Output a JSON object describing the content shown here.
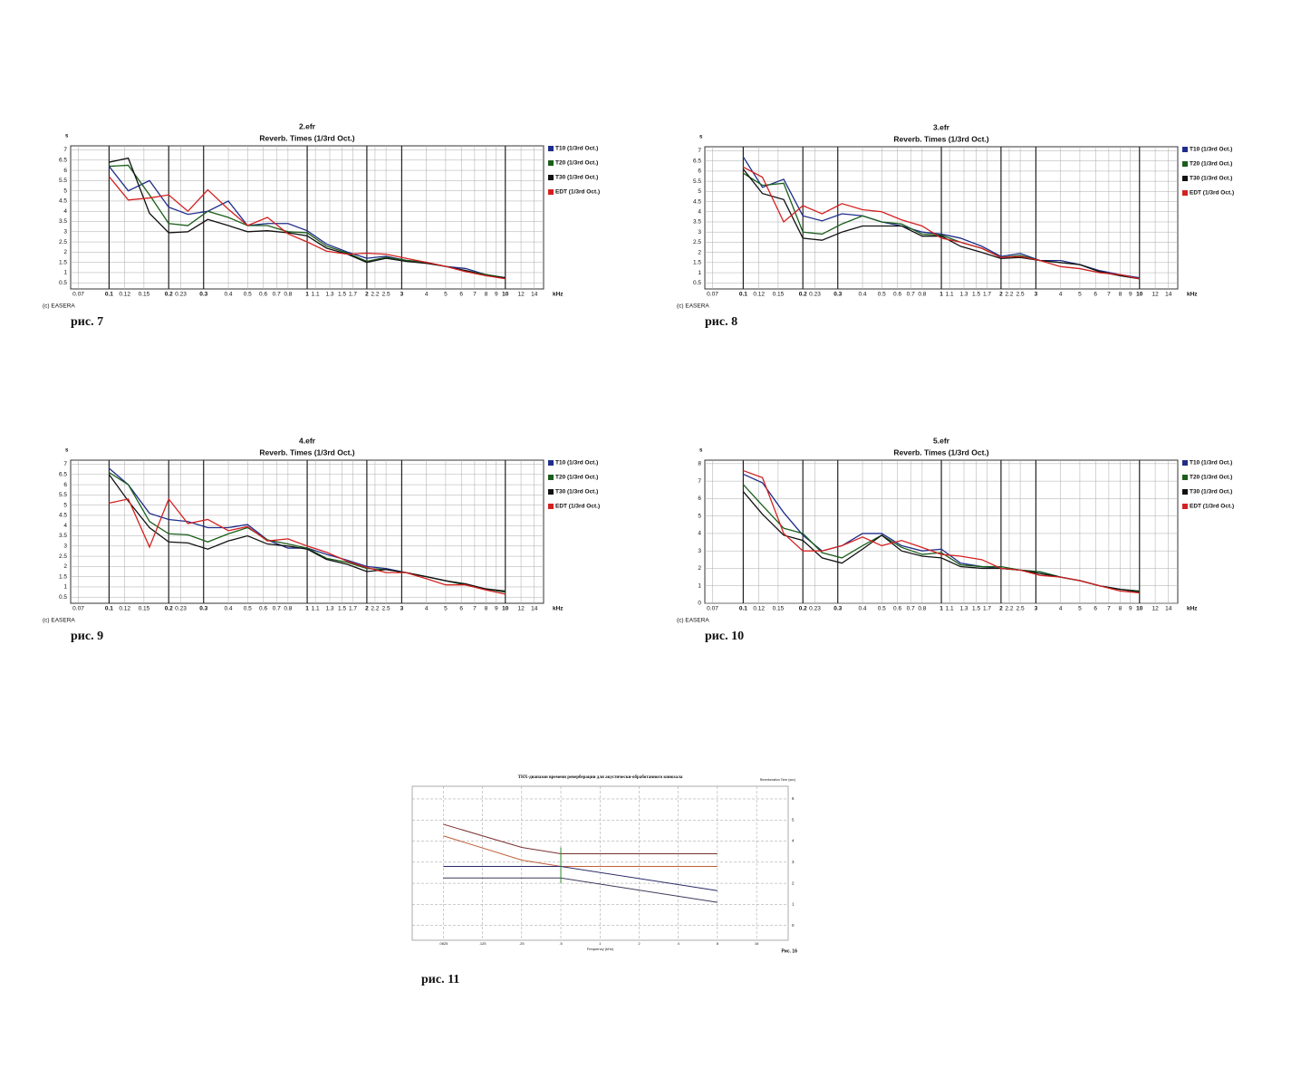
{
  "chart_data": [
    {
      "type": "line",
      "title": "2.efr",
      "subtitle": "Reverb. Times (1/3rd Oct.)",
      "y_unit": "s",
      "x_unit": "kHz",
      "copyright": "(c) EASERA",
      "caption": "рис. 7",
      "xscale": "log",
      "grid": true,
      "legend": "right",
      "xlim": [
        0.064,
        15.6
      ],
      "ylim": [
        0.2,
        7.2
      ],
      "xticks": [
        0.07,
        0.1,
        0.12,
        0.15,
        0.2,
        0.23,
        0.3,
        0.4,
        0.5,
        0.6,
        0.7,
        0.8,
        1,
        1.1,
        1.3,
        1.5,
        1.7,
        2,
        2.2,
        2.5,
        3,
        4,
        5,
        6,
        7,
        8,
        9,
        10,
        12,
        14
      ],
      "yticks": [
        0.5,
        1,
        1.5,
        2,
        2.5,
        3,
        3.5,
        4,
        4.5,
        5,
        5.5,
        6,
        6.5,
        7
      ],
      "x": [
        0.1,
        0.125,
        0.16,
        0.2,
        0.25,
        0.315,
        0.4,
        0.5,
        0.63,
        0.8,
        1,
        1.25,
        1.6,
        2,
        2.5,
        3.15,
        4,
        5,
        6.3,
        8,
        10
      ],
      "series": [
        {
          "name": "T10 (1/3rd Oct.)",
          "color": "#1f2d8a",
          "values": [
            6.2,
            5.0,
            5.5,
            4.2,
            3.85,
            4.0,
            4.5,
            3.3,
            3.4,
            3.4,
            3.05,
            2.4,
            2.0,
            1.7,
            1.8,
            1.6,
            1.5,
            1.3,
            1.2,
            0.9,
            0.75
          ]
        },
        {
          "name": "T20 (1/3rd Oct.)",
          "color": "#1a5e1a",
          "values": [
            6.2,
            6.25,
            4.8,
            3.4,
            3.3,
            4.0,
            3.7,
            3.3,
            3.3,
            3.0,
            2.95,
            2.3,
            1.95,
            1.55,
            1.75,
            1.6,
            1.5,
            1.3,
            1.1,
            0.9,
            0.75
          ]
        },
        {
          "name": "T30 (1/3rd Oct.)",
          "color": "#111111",
          "values": [
            6.4,
            6.6,
            3.9,
            2.95,
            3.0,
            3.6,
            3.3,
            3.0,
            3.05,
            2.95,
            2.8,
            2.2,
            1.9,
            1.5,
            1.7,
            1.55,
            1.45,
            1.3,
            1.1,
            0.85,
            0.75
          ]
        },
        {
          "name": "EDT (1/3rd Oct.)",
          "color": "#d42020",
          "values": [
            5.7,
            4.55,
            4.65,
            4.8,
            4.0,
            5.05,
            4.1,
            3.3,
            3.7,
            2.9,
            2.5,
            2.05,
            1.9,
            1.95,
            1.9,
            1.7,
            1.5,
            1.3,
            1.05,
            0.85,
            0.7
          ]
        }
      ]
    },
    {
      "type": "line",
      "title": "3.efr",
      "subtitle": "Reverb. Times (1/3rd Oct.)",
      "y_unit": "s",
      "x_unit": "kHz",
      "copyright": "(c) EASERA",
      "caption": "рис. 8",
      "xscale": "log",
      "grid": true,
      "legend": "right",
      "xlim": [
        0.064,
        15.6
      ],
      "ylim": [
        0.2,
        7.2
      ],
      "xticks": [
        0.07,
        0.1,
        0.12,
        0.15,
        0.2,
        0.23,
        0.3,
        0.4,
        0.5,
        0.6,
        0.7,
        0.8,
        1,
        1.1,
        1.3,
        1.5,
        1.7,
        2,
        2.2,
        2.5,
        3,
        4,
        5,
        6,
        7,
        8,
        9,
        10,
        12,
        14
      ],
      "yticks": [
        0.5,
        1,
        1.5,
        2,
        2.5,
        3,
        3.5,
        4,
        4.5,
        5,
        5.5,
        6,
        6.5,
        7
      ],
      "x": [
        0.1,
        0.125,
        0.16,
        0.2,
        0.25,
        0.315,
        0.4,
        0.5,
        0.63,
        0.8,
        1,
        1.25,
        1.6,
        2,
        2.5,
        3.15,
        4,
        5,
        6.3,
        8,
        10
      ],
      "series": [
        {
          "name": "T10 (1/3rd Oct.)",
          "color": "#1f2d8a",
          "values": [
            6.7,
            5.2,
            5.6,
            3.8,
            3.55,
            3.9,
            3.8,
            3.5,
            3.3,
            3.0,
            2.9,
            2.7,
            2.3,
            1.8,
            1.95,
            1.6,
            1.6,
            1.4,
            1.1,
            0.9,
            0.75
          ]
        },
        {
          "name": "T20 (1/3rd Oct.)",
          "color": "#1a5e1a",
          "values": [
            5.9,
            5.3,
            5.4,
            3.0,
            2.9,
            3.4,
            3.8,
            3.5,
            3.4,
            2.9,
            2.85,
            2.5,
            2.2,
            1.75,
            1.85,
            1.6,
            1.5,
            1.4,
            1.05,
            0.85,
            0.7
          ]
        },
        {
          "name": "T30 (1/3rd Oct.)",
          "color": "#111111",
          "values": [
            6.1,
            4.9,
            4.6,
            2.7,
            2.6,
            3.0,
            3.3,
            3.3,
            3.3,
            2.8,
            2.8,
            2.3,
            2.0,
            1.7,
            1.75,
            1.6,
            1.5,
            1.4,
            1.05,
            0.85,
            0.7
          ]
        },
        {
          "name": "EDT (1/3rd Oct.)",
          "color": "#d42020",
          "values": [
            6.2,
            5.7,
            3.5,
            4.3,
            3.9,
            4.4,
            4.1,
            4.0,
            3.6,
            3.3,
            2.7,
            2.5,
            2.2,
            1.75,
            1.8,
            1.6,
            1.3,
            1.2,
            1.0,
            0.9,
            0.7
          ]
        }
      ]
    },
    {
      "type": "line",
      "title": "4.efr",
      "subtitle": "Reverb. Times (1/3rd Oct.)",
      "y_unit": "s",
      "x_unit": "kHz",
      "copyright": "(c) EASERA",
      "caption": "рис. 9",
      "xscale": "log",
      "grid": true,
      "legend": "right",
      "xlim": [
        0.064,
        15.6
      ],
      "ylim": [
        0.2,
        7.2
      ],
      "xticks": [
        0.07,
        0.1,
        0.12,
        0.15,
        0.2,
        0.23,
        0.3,
        0.4,
        0.5,
        0.6,
        0.7,
        0.8,
        1,
        1.1,
        1.3,
        1.5,
        1.7,
        2,
        2.2,
        2.5,
        3,
        4,
        5,
        6,
        7,
        8,
        9,
        10,
        12,
        14
      ],
      "yticks": [
        0.5,
        1,
        1.5,
        2,
        2.5,
        3,
        3.5,
        4,
        4.5,
        5,
        5.5,
        6,
        6.5,
        7
      ],
      "x": [
        0.1,
        0.125,
        0.16,
        0.2,
        0.25,
        0.315,
        0.4,
        0.5,
        0.63,
        0.8,
        1,
        1.25,
        1.6,
        2,
        2.5,
        3.15,
        4,
        5,
        6.3,
        8,
        10
      ],
      "series": [
        {
          "name": "T10 (1/3rd Oct.)",
          "color": "#1f2d8a",
          "values": [
            6.8,
            6.0,
            4.6,
            4.3,
            4.2,
            3.9,
            3.9,
            4.05,
            3.3,
            2.9,
            2.9,
            2.6,
            2.3,
            2.0,
            1.9,
            1.7,
            1.5,
            1.3,
            1.1,
            0.9,
            0.75
          ]
        },
        {
          "name": "T20 (1/3rd Oct.)",
          "color": "#1a5e1a",
          "values": [
            6.6,
            6.0,
            4.2,
            3.6,
            3.55,
            3.2,
            3.6,
            3.9,
            3.3,
            3.1,
            2.9,
            2.4,
            2.2,
            1.9,
            1.85,
            1.7,
            1.5,
            1.3,
            1.1,
            0.9,
            0.75
          ]
        },
        {
          "name": "T30 (1/3rd Oct.)",
          "color": "#111111",
          "values": [
            6.5,
            5.2,
            3.9,
            3.2,
            3.15,
            2.85,
            3.25,
            3.5,
            3.1,
            3.0,
            2.85,
            2.35,
            2.1,
            1.75,
            1.85,
            1.7,
            1.5,
            1.3,
            1.15,
            0.9,
            0.8
          ]
        },
        {
          "name": "EDT (1/3rd Oct.)",
          "color": "#d42020",
          "values": [
            5.1,
            5.3,
            2.95,
            5.3,
            4.1,
            4.3,
            3.75,
            3.95,
            3.25,
            3.35,
            3.0,
            2.7,
            2.25,
            1.95,
            1.7,
            1.7,
            1.4,
            1.1,
            1.1,
            0.85,
            0.65
          ]
        }
      ]
    },
    {
      "type": "line",
      "title": "5.efr",
      "subtitle": "Reverb. Times (1/3rd Oct.)",
      "y_unit": "s",
      "x_unit": "kHz",
      "copyright": "(c) EASERA",
      "caption": "рис. 10",
      "xscale": "log",
      "grid": true,
      "legend": "right",
      "xlim": [
        0.064,
        15.6
      ],
      "ylim": [
        0,
        8.2
      ],
      "xticks": [
        0.07,
        0.1,
        0.12,
        0.15,
        0.2,
        0.23,
        0.3,
        0.4,
        0.5,
        0.6,
        0.7,
        0.8,
        1,
        1.1,
        1.3,
        1.5,
        1.7,
        2,
        2.2,
        2.5,
        3,
        4,
        5,
        6,
        7,
        8,
        9,
        10,
        12,
        14
      ],
      "yticks": [
        0,
        1,
        2,
        3,
        4,
        5,
        6,
        7,
        8
      ],
      "x": [
        0.1,
        0.125,
        0.16,
        0.2,
        0.25,
        0.315,
        0.4,
        0.5,
        0.63,
        0.8,
        1,
        1.25,
        1.6,
        2,
        2.5,
        3.15,
        4,
        5,
        6.3,
        8,
        10
      ],
      "series": [
        {
          "name": "T10 (1/3rd Oct.)",
          "color": "#1f2d8a",
          "values": [
            7.4,
            6.9,
            5.2,
            3.9,
            3.0,
            3.3,
            4.0,
            4.0,
            3.3,
            3.0,
            3.1,
            2.3,
            2.1,
            2.0,
            1.9,
            1.8,
            1.5,
            1.3,
            1.0,
            0.8,
            0.7
          ]
        },
        {
          "name": "T20 (1/3rd Oct.)",
          "color": "#1a5e1a",
          "values": [
            6.8,
            5.6,
            4.3,
            4.0,
            2.9,
            2.6,
            3.3,
            3.9,
            3.2,
            2.8,
            2.9,
            2.2,
            2.1,
            2.1,
            1.9,
            1.8,
            1.5,
            1.3,
            1.0,
            0.8,
            0.7
          ]
        },
        {
          "name": "T30 (1/3rd Oct.)",
          "color": "#111111",
          "values": [
            6.4,
            5.1,
            3.9,
            3.6,
            2.6,
            2.3,
            3.1,
            3.9,
            3.0,
            2.7,
            2.6,
            2.1,
            2.0,
            2.0,
            1.9,
            1.7,
            1.5,
            1.3,
            1.0,
            0.8,
            0.65
          ]
        },
        {
          "name": "EDT (1/3rd Oct.)",
          "color": "#d42020",
          "values": [
            7.6,
            7.2,
            4.0,
            3.0,
            3.0,
            3.3,
            3.8,
            3.3,
            3.6,
            3.2,
            2.8,
            2.7,
            2.5,
            2.0,
            1.9,
            1.6,
            1.5,
            1.3,
            1.0,
            0.7,
            0.6
          ]
        }
      ]
    },
    {
      "type": "line",
      "title": "ТНХ-диапазон времени реверберации для акустически-обработанного кинозала",
      "y_label": "Reverberation Time (sec)",
      "x_label": "Frequency (kHz)",
      "note": "Рис. 16",
      "caption": "рис. 11",
      "xscale": "log",
      "grid": true,
      "xlim": [
        0.036,
        28
      ],
      "ylim": [
        -0.7,
        6.6
      ],
      "xticks": [
        {
          "value": 0.0625,
          "label": ".0625"
        },
        {
          "value": 0.125,
          "label": ".125"
        },
        {
          "value": 0.25,
          "label": ".25"
        },
        {
          "value": 0.5,
          "label": ".5"
        },
        1,
        2,
        4,
        8,
        16
      ],
      "yticks": [
        0,
        1,
        2,
        3,
        4,
        5,
        6
      ],
      "series": [
        {
          "color": "#7a3030",
          "x": [
            0.0625,
            0.25,
            0.5,
            8
          ],
          "values": [
            4.8,
            3.7,
            3.4,
            3.4
          ]
        },
        {
          "color": "#c0603a",
          "x": [
            0.0625,
            0.25,
            0.5,
            8
          ],
          "values": [
            4.25,
            3.1,
            2.8,
            2.8
          ]
        },
        {
          "color": "#2a2a6a",
          "x": [
            0.0625,
            0.5,
            8
          ],
          "values": [
            2.8,
            2.8,
            1.65
          ]
        },
        {
          "color": "#3a3a5a",
          "x": [
            0.0625,
            0.5,
            8
          ],
          "values": [
            2.25,
            2.25,
            1.1
          ]
        },
        {
          "color": "#2a8a2a",
          "x": [
            0.5,
            0.5
          ],
          "values": [
            3.7,
            2.0
          ]
        }
      ]
    }
  ]
}
